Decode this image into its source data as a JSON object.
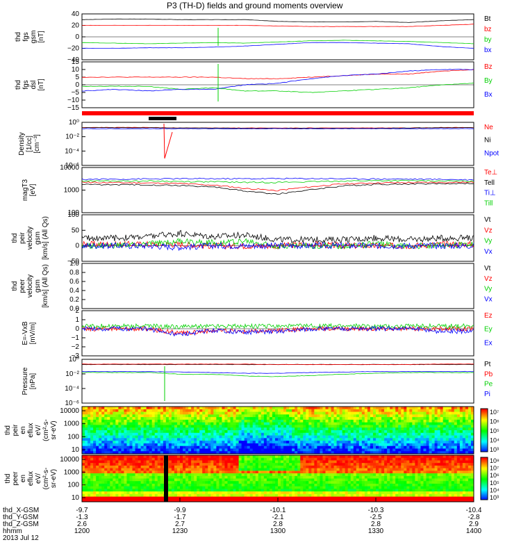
{
  "title": "P3 (TH-D) fields and ground moments overview",
  "colors": {
    "black": "#000000",
    "red": "#ff0000",
    "green": "#00d000",
    "blue": "#0000ff",
    "grid": "#000000"
  },
  "chart_data": [
    {
      "type": "line",
      "panel": "fgs-gsm",
      "ylabel": [
        "thd",
        "fgs",
        "gsm",
        "[nT]"
      ],
      "ylim": [
        -40,
        40
      ],
      "yticks": [
        "40",
        "20",
        "0",
        "−20",
        "−40"
      ],
      "series": [
        {
          "name": "Bt",
          "color": "#000000",
          "values": [
            30,
            31,
            31,
            30,
            30,
            30,
            27,
            26,
            26,
            27,
            25,
            28,
            30
          ]
        },
        {
          "name": "bz",
          "color": "#ff0000",
          "values": [
            20,
            20,
            20,
            20,
            20,
            20,
            19,
            18,
            18,
            18,
            18,
            20,
            22
          ]
        },
        {
          "name": "by",
          "color": "#00d000",
          "values": [
            -10,
            -11,
            -12,
            -11,
            -10,
            -11,
            -9,
            -7,
            -6,
            -7,
            -8,
            -10,
            -12
          ]
        },
        {
          "name": "bx",
          "color": "#0000ff",
          "values": [
            -20,
            -20,
            -19,
            -19,
            -18,
            -16,
            -13,
            -10,
            -10,
            -11,
            -12,
            -17,
            -20
          ]
        }
      ]
    },
    {
      "type": "line",
      "panel": "fgs-dsl",
      "ylabel": [
        "thd",
        "fgs",
        "dsl",
        "[nT]"
      ],
      "ylim": [
        -15,
        15
      ],
      "yticks": [
        "15",
        "10",
        "5",
        "0",
        "−5",
        "−10",
        "−15"
      ],
      "series": [
        {
          "name": "Bz",
          "color": "#ff0000",
          "values": [
            5,
            5,
            5,
            5,
            5,
            4,
            4,
            5,
            6,
            7,
            7,
            9,
            10
          ]
        },
        {
          "name": "By",
          "color": "#00d000",
          "values": [
            -1,
            -1,
            -1,
            -3,
            -2,
            -4,
            -4,
            -5,
            -4,
            -3,
            -2,
            0,
            1
          ]
        },
        {
          "name": "Bx",
          "color": "#0000ff",
          "values": [
            -4,
            -3,
            -4,
            -3,
            -3,
            0,
            1,
            4,
            6,
            7,
            9,
            10,
            10
          ]
        }
      ]
    },
    {
      "type": "line",
      "panel": "density",
      "ylabel": [
        "Density",
        "[1/cc]",
        "[cm⁻³]"
      ],
      "yscale": "log",
      "yticks": [
        "10⁰",
        "10⁻²",
        "10⁻⁴",
        "10⁻⁶"
      ],
      "series": [
        {
          "name": "Ne",
          "color": "#ff0000",
          "values": [
            0.5,
            0.5,
            0.5,
            0.4,
            0.4,
            0.4,
            0.4,
            0.4,
            0.4,
            0.4,
            0.4,
            0.5,
            0.5
          ]
        },
        {
          "name": "Ni",
          "color": "#000000",
          "values": [
            0.45,
            0.45,
            0.45,
            0.4,
            0.4,
            0.35,
            0.35,
            0.35,
            0.35,
            0.35,
            0.4,
            0.45,
            0.45
          ]
        },
        {
          "name": "Npot",
          "color": "#0000ff",
          "values": [
            0.3,
            0.3,
            0.3,
            0.3,
            0.3,
            0.3,
            0.3,
            0.3,
            0.3,
            0.3,
            0.3,
            0.3,
            0.3
          ]
        }
      ]
    },
    {
      "type": "line",
      "panel": "temperature",
      "ylabel": [
        "magT3",
        "[eV]"
      ],
      "yscale": "log",
      "yticks": [
        "10000",
        "1000",
        "100"
      ],
      "series": [
        {
          "name": "Te⊥",
          "color": "#ff0000",
          "values": [
            3000,
            2900,
            2800,
            2600,
            2200,
            1500,
            1200,
            1800,
            2500,
            2800,
            2900,
            3000,
            3000
          ]
        },
        {
          "name": "Tell",
          "color": "#000000",
          "values": [
            2400,
            2300,
            2300,
            2100,
            1800,
            1100,
            800,
            1300,
            2000,
            2400,
            2500,
            2600,
            2700
          ]
        },
        {
          "name": "Ti⊥",
          "color": "#0000ff",
          "values": [
            4200,
            4300,
            4400,
            4500,
            4500,
            4500,
            4600,
            4600,
            4500,
            4400,
            4300,
            4200,
            4000
          ]
        },
        {
          "name": "Till",
          "color": "#00d000",
          "values": [
            3500,
            3500,
            3500,
            3300,
            3200,
            3000,
            3000,
            3200,
            3500,
            3600,
            3600,
            3500,
            3400
          ]
        }
      ]
    },
    {
      "type": "line",
      "panel": "peir-velocity",
      "ylabel": [
        "thd",
        "peir",
        "velocity",
        "gsm",
        "[km/s] (All Qs)"
      ],
      "ylim": [
        -50,
        100
      ],
      "yticks": [
        "100",
        "50",
        "0",
        "−50"
      ],
      "series": [
        {
          "name": "Vt",
          "color": "#000000",
          "values": [
            25,
            25,
            30,
            40,
            30,
            35,
            20,
            20,
            20,
            25,
            20,
            25,
            25
          ]
        },
        {
          "name": "Vz",
          "color": "#ff0000",
          "values": [
            5,
            5,
            5,
            5,
            0,
            0,
            0,
            5,
            0,
            0,
            0,
            5,
            5
          ]
        },
        {
          "name": "Vy",
          "color": "#00d000",
          "values": [
            0,
            0,
            5,
            15,
            10,
            15,
            0,
            0,
            0,
            5,
            0,
            0,
            5
          ]
        },
        {
          "name": "Vx",
          "color": "#0000ff",
          "values": [
            0,
            0,
            0,
            -5,
            0,
            0,
            0,
            0,
            0,
            0,
            0,
            0,
            0
          ]
        }
      ]
    },
    {
      "type": "line",
      "panel": "peer-velocity",
      "ylabel": [
        "thd",
        "peer",
        "velocity",
        "gsm",
        "[km/s] (All Qs)"
      ],
      "ylim": [
        0,
        1
      ],
      "yticks": [
        "1.0",
        "0.8",
        "0.6",
        "0.4",
        "0.2",
        "0.0"
      ],
      "legend": [
        "Vt",
        "Vz",
        "Vy",
        "Vx"
      ]
    },
    {
      "type": "line",
      "panel": "efield",
      "ylabel": [
        "E=-VxB",
        "[mV/m]"
      ],
      "ylim": [
        -3,
        2
      ],
      "yticks": [
        "2",
        "1",
        "0",
        "−1",
        "−2",
        "−3"
      ],
      "series": [
        {
          "name": "Ez",
          "color": "#ff0000",
          "values": [
            0,
            0,
            0,
            -0.5,
            -0.2,
            -0.3,
            -0.2,
            0,
            0,
            0,
            0,
            0,
            0
          ]
        },
        {
          "name": "Ey",
          "color": "#00d000",
          "values": [
            0.3,
            0.3,
            0.3,
            0.2,
            0.3,
            0.3,
            0.3,
            0.3,
            0.3,
            0.3,
            0.3,
            0.3,
            0.3
          ]
        },
        {
          "name": "Ex",
          "color": "#0000ff",
          "values": [
            0,
            0,
            0,
            -0.7,
            -0.2,
            -0.4,
            -0.3,
            0,
            0,
            0,
            0,
            -0.3,
            -0.3
          ]
        }
      ]
    },
    {
      "type": "line",
      "panel": "pressure",
      "ylabel": [
        "Pressure",
        "[nPa]"
      ],
      "yscale": "log",
      "yticks": [
        "10⁰",
        "10⁻²",
        "10⁻⁴",
        "10⁻⁶"
      ],
      "series": [
        {
          "name": "Pt",
          "color": "#000000",
          "values": [
            0.5,
            0.5,
            0.5,
            0.5,
            0.5,
            0.5,
            0.5,
            0.5,
            0.5,
            0.5,
            0.5,
            0.5,
            0.5
          ]
        },
        {
          "name": "Pb",
          "color": "#ff0000",
          "values": [
            0.6,
            0.6,
            0.6,
            0.6,
            0.6,
            0.6,
            0.5,
            0.5,
            0.5,
            0.5,
            0.5,
            0.6,
            0.6
          ]
        },
        {
          "name": "Pe",
          "color": "#00d000",
          "values": [
            0.02,
            0.02,
            0.02,
            0.01,
            0.01,
            0.005,
            0.004,
            0.006,
            0.01,
            0.015,
            0.02,
            0.02,
            0.02
          ]
        },
        {
          "name": "Pi",
          "color": "#0000ff",
          "values": [
            0.03,
            0.03,
            0.03,
            0.025,
            0.02,
            0.015,
            0.015,
            0.02,
            0.025,
            0.03,
            0.03,
            0.03,
            0.03
          ]
        }
      ]
    },
    {
      "type": "heatmap",
      "panel": "peir-eflux",
      "ylabel": [
        "thd",
        "peir",
        "en",
        "eflux",
        "eV/",
        "(cm²-s-",
        "sr-eV)"
      ],
      "yscale": "log",
      "yticks": [
        "10000",
        "1000",
        "100",
        "10"
      ],
      "colorbar_ticks": [
        "10⁷",
        "10⁶",
        "10⁵",
        "10⁴",
        "10³"
      ]
    },
    {
      "type": "heatmap",
      "panel": "peer-eflux",
      "ylabel": [
        "thd",
        "peer",
        "en",
        "eflux",
        "eV/",
        "(cm²-s-",
        "sr-eV)"
      ],
      "yscale": "log",
      "yticks": [
        "10000",
        "1000",
        "100",
        "10"
      ],
      "colorbar_ticks": [
        "10⁸",
        "10⁷",
        "10⁶",
        "10⁵",
        "10⁴",
        "10³"
      ]
    }
  ],
  "xaxis": {
    "rows": [
      {
        "label": "thd_X-GSM",
        "values": [
          "-9.7",
          "-9.9",
          "-10.1",
          "-10.3",
          "-10.4"
        ]
      },
      {
        "label": "thd_Y-GSM",
        "values": [
          "-1.3",
          "-1.7",
          "-2.1",
          "-2.5",
          "-2.8"
        ]
      },
      {
        "label": "thd_Z-GSM",
        "values": [
          "2.6",
          "2.7",
          "2.8",
          "2.8",
          "2.9"
        ]
      },
      {
        "label": "hhmm",
        "values": [
          "1200",
          "1230",
          "1300",
          "1330",
          "1400"
        ]
      }
    ],
    "date": "2013 Jul 12"
  }
}
